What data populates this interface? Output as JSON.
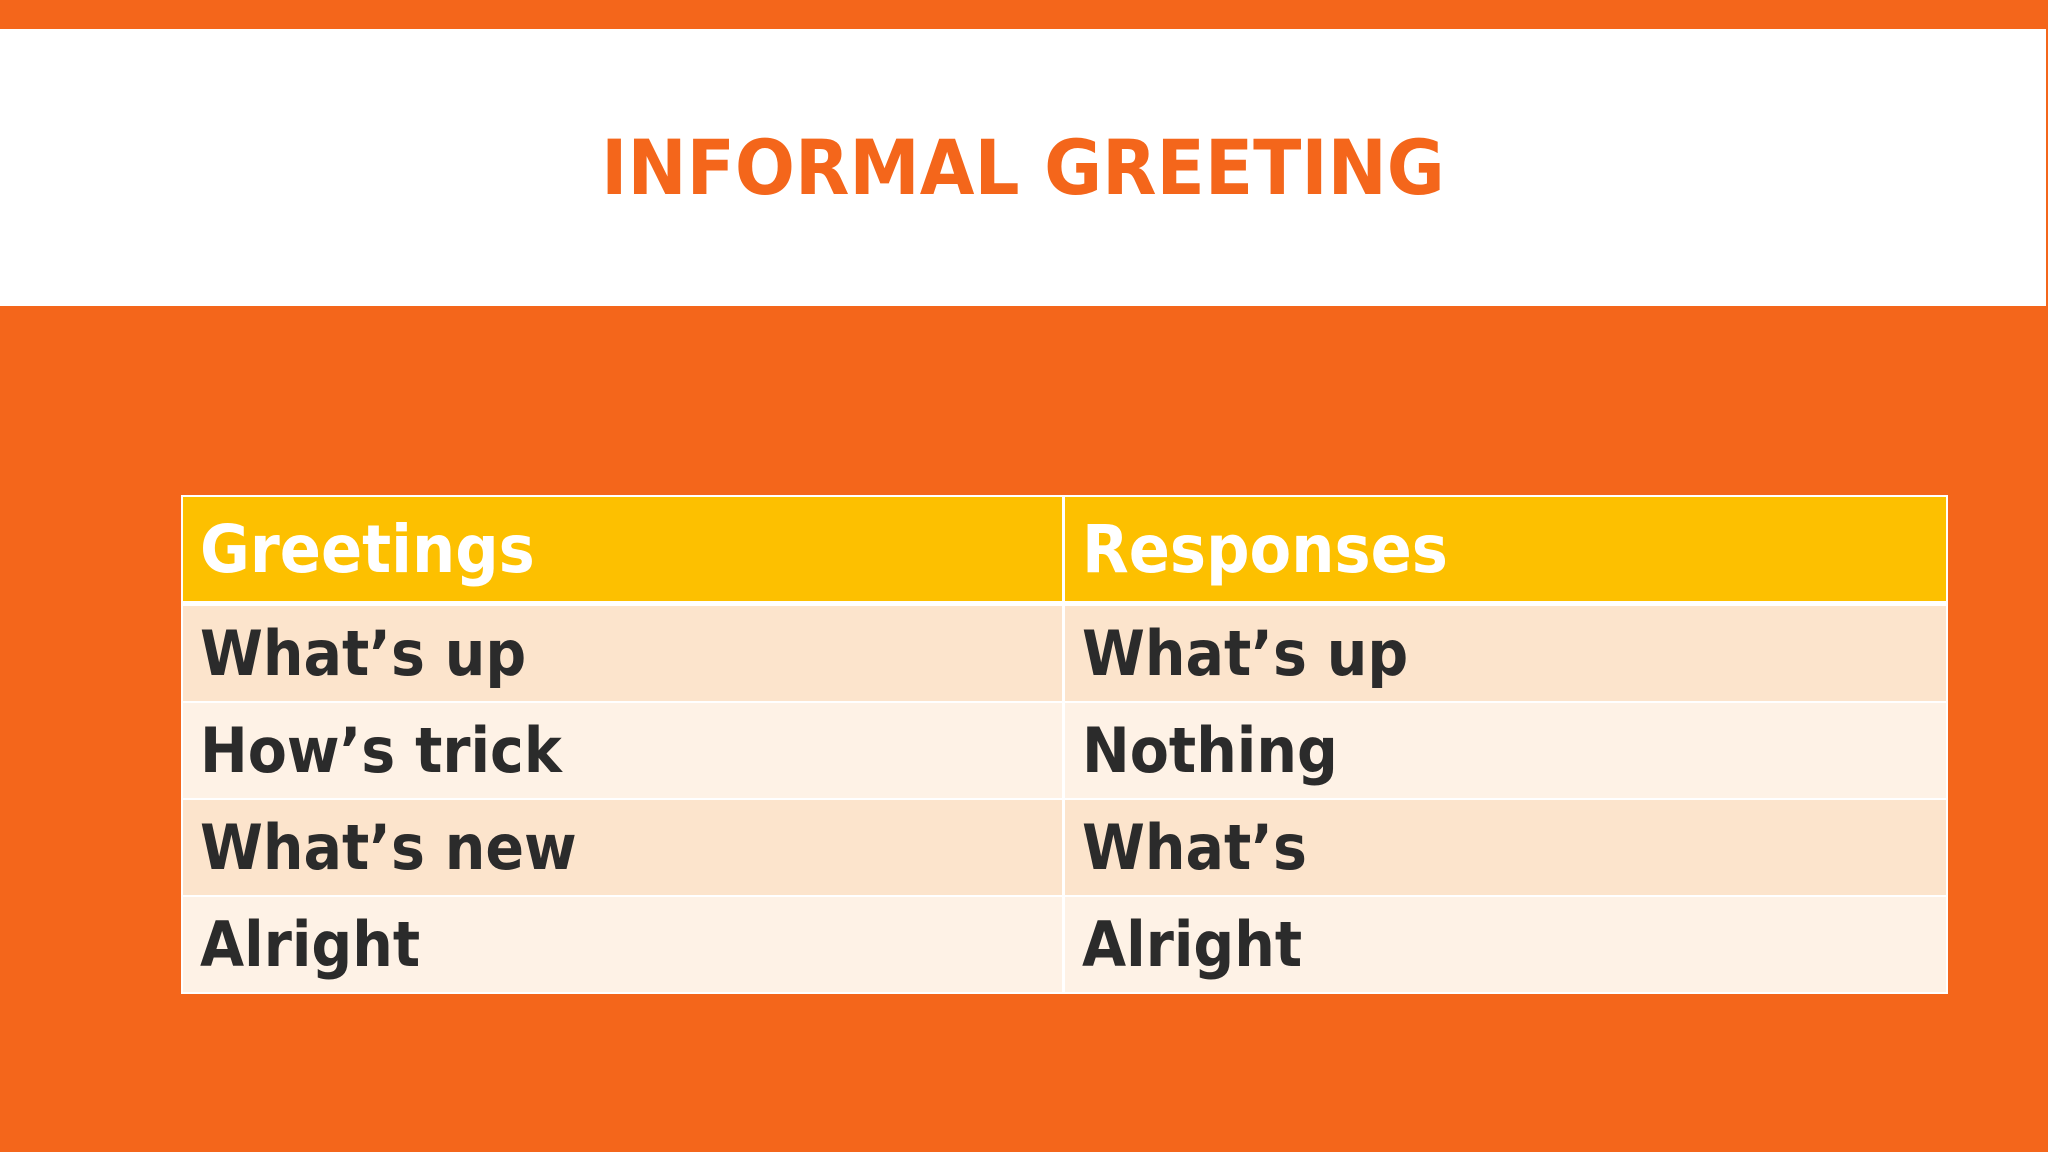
{
  "slide": {
    "title": "INFORMAL GREETING",
    "colors": {
      "background": "#f4661b",
      "title_band": "#ffffff",
      "title_text": "#f4661b",
      "header_fill": "#fdc000",
      "header_text": "#ffffff",
      "row_odd_fill": "#fce4cc",
      "row_even_fill": "#fef2e6",
      "cell_text": "#2b2b2b"
    }
  },
  "table": {
    "columns": [
      "Greetings",
      "Responses"
    ],
    "rows": [
      [
        "What’s up",
        "What’s up"
      ],
      [
        "How’s trick",
        "Nothing"
      ],
      [
        "What’s new",
        "What’s"
      ],
      [
        "Alright",
        "Alright"
      ]
    ]
  }
}
